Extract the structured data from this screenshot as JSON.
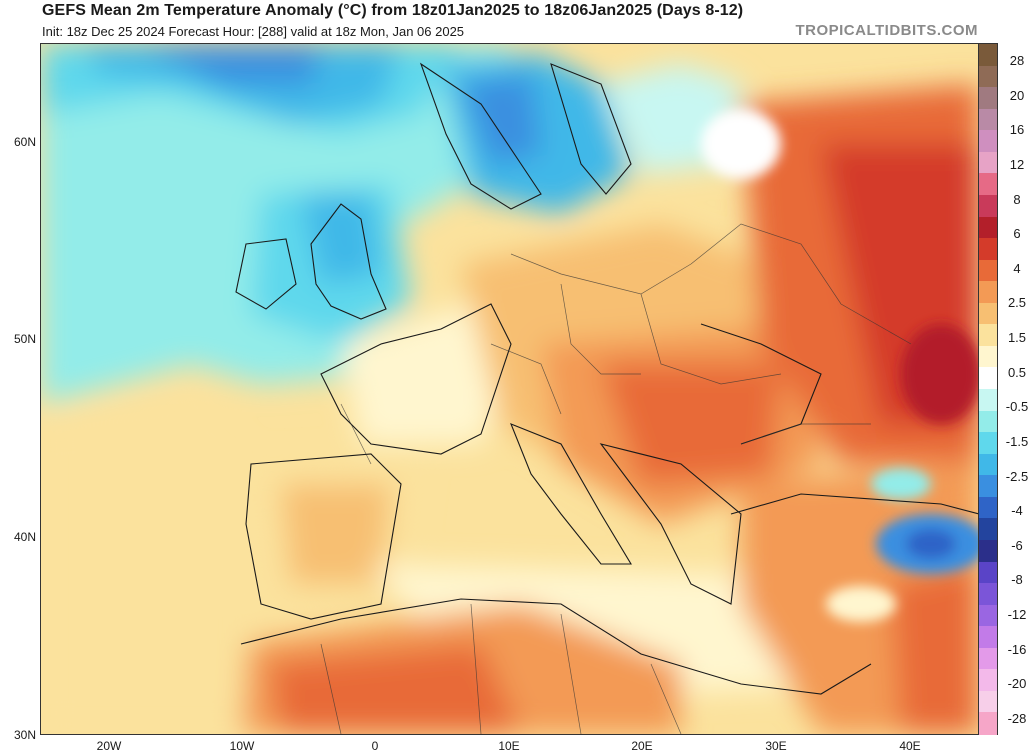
{
  "header": {
    "title": "GEFS Mean 2m Temperature Anomaly (°C) from 18z01Jan2025 to 18z06Jan2025 (Days 8-12)",
    "subtitle": "Init: 18z Dec 25 2024   Forecast Hour: [288]   valid at 18z Mon, Jan 06 2025",
    "brand": "TROPICALTIDBITS.COM"
  },
  "axes": {
    "lat_labels": [
      "60N",
      "50N",
      "40N",
      "30N"
    ],
    "lon_labels": [
      "20W",
      "10W",
      "0",
      "10E",
      "20E",
      "30E",
      "40E"
    ]
  },
  "legend": {
    "labels": [
      "28",
      "20",
      "16",
      "12",
      "8",
      "6",
      "4",
      "2.5",
      "1.5",
      "0.5",
      "-0.5",
      "-1.5",
      "-2.5",
      "-4",
      "-6",
      "-8",
      "-12",
      "-16",
      "-20",
      "-28"
    ],
    "colors": [
      "#7a5a3a",
      "#8f6b56",
      "#a07a80",
      "#b98aa6",
      "#cf8fbf",
      "#e7a3c6",
      "#e66a86",
      "#c93a5a",
      "#b31f2a",
      "#d43b2a",
      "#e86a38",
      "#f39a55",
      "#f7bf72",
      "#fbe29d",
      "#fff6cf",
      "#ffffff",
      "#c8f7f2",
      "#93ece9",
      "#5fd8ec",
      "#40b8e8",
      "#3a8fe0",
      "#2f64c7",
      "#23449e",
      "#2b2f8a",
      "#5a44c7",
      "#7b55d8",
      "#9a66e2",
      "#c27be8",
      "#e39ae9",
      "#f3b9ea",
      "#f7cfe9",
      "#f6a6c8"
    ]
  },
  "map": {
    "region": "Europe / North Africa",
    "lat_range": [
      30,
      65
    ],
    "lon_range": [
      -25,
      45
    ]
  }
}
